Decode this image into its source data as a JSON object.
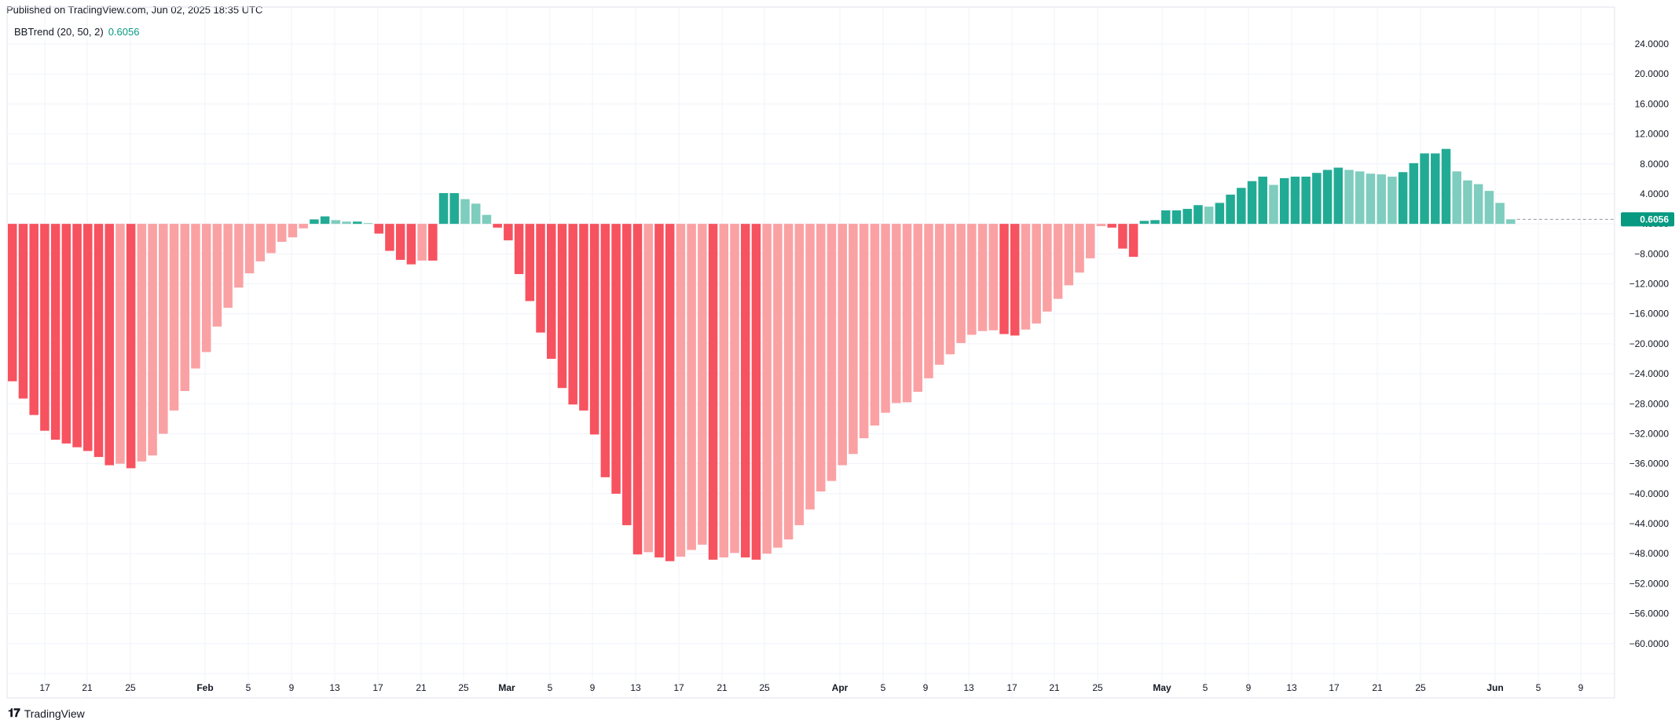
{
  "header": {
    "published": "Published on TradingView.com, Jun 02, 2025 18:35 UTC"
  },
  "legend": {
    "name": "BBTrend (20, 50, 2)",
    "value": "0.6056"
  },
  "footer": {
    "brand": "TradingView",
    "logo_icon": "tradingview-logo-icon"
  },
  "colors": {
    "strong_negative": "#f7525f",
    "weak_negative": "#faa1a4",
    "strong_positive": "#22ab94",
    "weak_positive": "#7ecdbe",
    "grid": "#f0f3fa",
    "last_value_badge": "#089981"
  },
  "chart_data": {
    "type": "bar",
    "title": "BBTrend (20, 50, 2)",
    "last_value": 0.6056,
    "ylim": [
      -60,
      24
    ],
    "y_ticks": [
      "24.0000",
      "20.0000",
      "16.0000",
      "12.0000",
      "8.0000",
      "4.0000",
      "0.6056",
      "−4.0000",
      "−8.0000",
      "−12.0000",
      "−16.0000",
      "−20.0000",
      "−24.0000",
      "−28.0000",
      "−32.0000",
      "−36.0000",
      "−40.0000",
      "−44.0000",
      "−48.0000",
      "−52.0000",
      "−56.0000",
      "−60.0000"
    ],
    "x_ticks": [
      "17",
      "21",
      "25",
      "Feb",
      "5",
      "9",
      "13",
      "17",
      "21",
      "25",
      "Mar",
      "5",
      "9",
      "13",
      "17",
      "21",
      "25",
      "Apr",
      "5",
      "9",
      "13",
      "17",
      "21",
      "25",
      "May",
      "5",
      "9",
      "13",
      "17",
      "21",
      "25",
      "Jun",
      "5",
      "9"
    ],
    "x_tick_bold": [
      "Feb",
      "Mar",
      "Apr",
      "May",
      "Jun"
    ],
    "grid": true,
    "series": [
      {
        "values": [
          -21.0,
          -23.3,
          -25.5,
          -27.6,
          -28.8,
          -29.3,
          -29.8,
          -30.3,
          -31.1,
          -32.2,
          -32.0,
          -32.6,
          -31.7,
          -30.9,
          -28.0,
          -24.9,
          -22.3,
          -19.3,
          -17.1,
          -13.7,
          -11.2,
          -8.5,
          -6.6,
          -5.0,
          -3.9,
          -2.4,
          -1.8,
          -0.6,
          0.6,
          1.0,
          0.5,
          0.3,
          0.3,
          0.1,
          -1.3,
          -3.6,
          -4.8,
          -5.4,
          -4.9,
          -4.9,
          4.1,
          4.1,
          3.3,
          2.7,
          1.2,
          -0.5,
          -2.2,
          -6.7,
          -10.3,
          -14.5,
          -18.0,
          -21.9,
          -24.1,
          -24.9,
          -28.1,
          -33.8,
          -36.0,
          -40.2,
          -44.1,
          -43.8,
          -44.5,
          -45.0,
          -44.4,
          -43.5,
          -42.8,
          -44.8,
          -44.5,
          -43.9,
          -44.5,
          -44.8,
          -44.0,
          -43.2,
          -42.1,
          -40.2,
          -38.1,
          -35.7,
          -34.3,
          -32.2,
          -30.7,
          -28.6,
          -26.9,
          -25.2,
          -23.9,
          -23.8,
          -22.4,
          -20.6,
          -18.8,
          -17.4,
          -15.9,
          -14.8,
          -14.3,
          -14.2,
          -14.7,
          -14.9,
          -14.1,
          -13.3,
          -11.7,
          -10.0,
          -8.2,
          -6.5,
          -4.6,
          -0.3,
          -0.5,
          -3.3,
          -4.4,
          0.4,
          0.5,
          1.8,
          1.8,
          2.0,
          2.5,
          2.3,
          2.8,
          3.9,
          4.8,
          5.7,
          6.3,
          5.2,
          6.1,
          6.3,
          6.3,
          6.8,
          7.2,
          7.5,
          7.2,
          7.0,
          6.7,
          6.6,
          6.3,
          6.9,
          8.1,
          9.4,
          9.4,
          10.0,
          7.0,
          5.8,
          5.3,
          4.4,
          2.8,
          0.61
        ]
      }
    ]
  }
}
